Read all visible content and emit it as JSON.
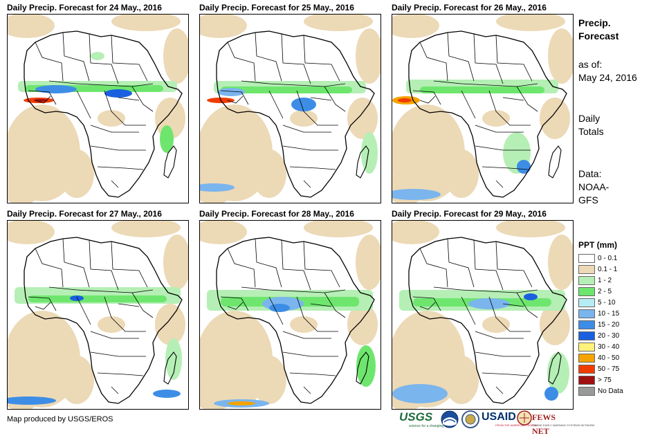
{
  "panels": [
    {
      "title": "Daily Precip. Forecast for 24 May., 2016"
    },
    {
      "title": "Daily Precip. Forecast for 25 May., 2016"
    },
    {
      "title": "Daily Precip. Forecast for 26 May., 2016"
    },
    {
      "title": "Daily Precip. Forecast for 27 May., 2016"
    },
    {
      "title": "Daily Precip. Forecast for 28 May., 2016"
    },
    {
      "title": "Daily Precip. Forecast for 29 May., 2016"
    }
  ],
  "side": {
    "title_line1": "Precip.",
    "title_line2": "Forecast",
    "asof_line1": "as of:",
    "asof_line2": "May 24, 2016",
    "daily_line1": "Daily",
    "daily_line2": "Totals",
    "data_line1": "Data:",
    "data_line2": "NOAA-",
    "data_line3": "GFS"
  },
  "legend": {
    "title": "PPT (mm)",
    "items": [
      {
        "label": "0 - 0.1",
        "color": "#ffffff"
      },
      {
        "label": "0.1 - 1",
        "color": "#ecd9b6"
      },
      {
        "label": "1 - 2",
        "color": "#b5efb5"
      },
      {
        "label": "2 - 5",
        "color": "#6ee66e"
      },
      {
        "label": "5 - 10",
        "color": "#b7ecf5"
      },
      {
        "label": "10 - 15",
        "color": "#7ab5ee"
      },
      {
        "label": "15 - 20",
        "color": "#3d8de6"
      },
      {
        "label": "20 - 30",
        "color": "#1a5fe0"
      },
      {
        "label": "30 - 40",
        "color": "#fff27a"
      },
      {
        "label": "40 - 50",
        "color": "#f5a300"
      },
      {
        "label": "50 - 75",
        "color": "#f03c00"
      },
      {
        "label": "> 75",
        "color": "#a01010"
      },
      {
        "label": "No Data",
        "color": "#999999"
      }
    ]
  },
  "credit": "Map produced by USGS/EROS",
  "logos": {
    "usgs": "USGS",
    "usgs_tagline": "science for a changing world",
    "usaid": "USAID",
    "usaid_tagline": "FROM THE AMERICAN PEOPLE",
    "fews": "FEWS NET",
    "fews_tagline": "FAMINE EARLY WARNING SYSTEMS NETWORK"
  }
}
